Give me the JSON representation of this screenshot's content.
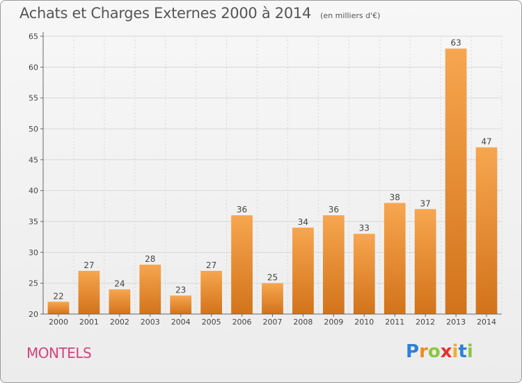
{
  "title": "Achats et Charges Externes 2000 à 2014",
  "subtitle": "(en milliers d'€)",
  "location": "MONTELS",
  "brand": {
    "letters": [
      "P",
      "r",
      "o",
      "x",
      "i",
      "t",
      "i"
    ],
    "colors": [
      "#2f7fd8",
      "#f08a1c",
      "#8cc63f",
      "#e8312f",
      "#f2b01e",
      "#2f7fd8",
      "#8cc63f"
    ]
  },
  "colors": {
    "bar_light": "#f7a650",
    "bar_dark": "#d2731a",
    "grid": "#d8d8d8",
    "axis": "#666666",
    "text": "#444444"
  },
  "chart_data": {
    "type": "bar",
    "title": "Achats et Charges Externes 2000 à 2014",
    "subtitle": "(en milliers d'€)",
    "categories": [
      "2000",
      "2001",
      "2002",
      "2003",
      "2004",
      "2005",
      "2006",
      "2007",
      "2008",
      "2009",
      "2010",
      "2011",
      "2012",
      "2013",
      "2014"
    ],
    "values": [
      22,
      27,
      24,
      28,
      23,
      27,
      36,
      25,
      34,
      36,
      33,
      38,
      37,
      63,
      47
    ],
    "ylim": [
      20,
      65
    ],
    "yticks": [
      20,
      25,
      30,
      35,
      40,
      45,
      50,
      55,
      60,
      65
    ],
    "xlabel": "",
    "ylabel": "",
    "grid": true,
    "data_labels": true
  }
}
